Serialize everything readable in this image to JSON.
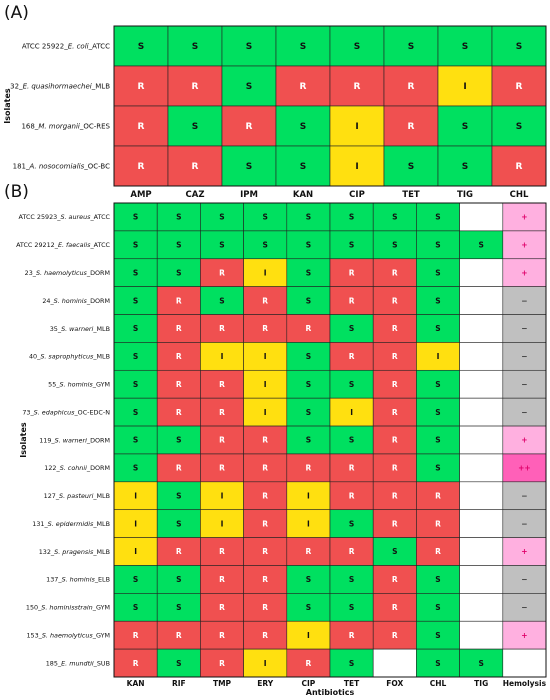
{
  "colors": {
    "S": "#00e060",
    "R": "#f05050",
    "I": "#ffe010",
    "empty": "#ffffff",
    "plus": "#ffb0e0",
    "plusplus": "#ff60b8",
    "minus": "#c0c0c0",
    "hemoText": "#e0006a"
  },
  "chart_data": [
    {
      "type": "heatmap",
      "panel_label": "(A)",
      "ylabel": "Isolates",
      "xlabel": "",
      "categories": [
        "AMP",
        "CAZ",
        "IPM",
        "KAN",
        "CIP",
        "TET",
        "TIG",
        "CHL"
      ],
      "rows": [
        {
          "label": "ATCC 25922_E. coli_ATCC",
          "values": [
            "S",
            "S",
            "S",
            "S",
            "S",
            "S",
            "S",
            "S"
          ]
        },
        {
          "label": "32_E. quasihormaechei_MLB",
          "values": [
            "R",
            "R",
            "S",
            "R",
            "R",
            "R",
            "I",
            "R"
          ]
        },
        {
          "label": "168_M. morganii_OC-RES",
          "values": [
            "R",
            "S",
            "R",
            "S",
            "I",
            "R",
            "S",
            "S"
          ]
        },
        {
          "label": "181_A. nosocomialis_OC-BC",
          "values": [
            "R",
            "R",
            "S",
            "S",
            "I",
            "S",
            "S",
            "R"
          ]
        }
      ]
    },
    {
      "type": "heatmap",
      "panel_label": "(B)",
      "ylabel": "Isolates",
      "xlabel": "Antibiotics",
      "categories": [
        "KAN",
        "RIF",
        "TMP",
        "ERY",
        "CIP",
        "TET",
        "FOX",
        "CHL",
        "TIG",
        "Hemolysis"
      ],
      "rows": [
        {
          "label": "ATCC 25923_S. aureus_ATCC",
          "values": [
            "S",
            "S",
            "S",
            "S",
            "S",
            "S",
            "S",
            "S",
            "",
            "+"
          ]
        },
        {
          "label": "ATCC 29212_E. faecalis_ATCC",
          "values": [
            "S",
            "S",
            "S",
            "S",
            "S",
            "S",
            "S",
            "S",
            "S",
            "+"
          ]
        },
        {
          "label": "23_S. haemolyticus_DORM",
          "values": [
            "S",
            "S",
            "R",
            "I",
            "S",
            "R",
            "R",
            "S",
            "",
            "+"
          ]
        },
        {
          "label": "24_S. hominis_DORM",
          "values": [
            "S",
            "R",
            "S",
            "R",
            "S",
            "R",
            "R",
            "S",
            "",
            "−"
          ]
        },
        {
          "label": "35_S. warneri_MLB",
          "values": [
            "S",
            "R",
            "R",
            "R",
            "R",
            "S",
            "R",
            "S",
            "",
            "−"
          ]
        },
        {
          "label": "40_S. saprophyticus_MLB",
          "values": [
            "S",
            "R",
            "I",
            "I",
            "S",
            "R",
            "R",
            "I",
            "",
            "−"
          ]
        },
        {
          "label": "55_S. hominis_GYM",
          "values": [
            "S",
            "R",
            "R",
            "I",
            "S",
            "S",
            "R",
            "S",
            "",
            "−"
          ]
        },
        {
          "label": "73_S. edaphicus_OC-EDC-N",
          "values": [
            "S",
            "R",
            "R",
            "I",
            "S",
            "I",
            "R",
            "S",
            "",
            "−"
          ]
        },
        {
          "label": "119_S. warneri_DORM",
          "values": [
            "S",
            "S",
            "R",
            "R",
            "S",
            "S",
            "R",
            "S",
            "",
            "+"
          ]
        },
        {
          "label": "122_S. cohnii_DORM",
          "values": [
            "S",
            "R",
            "R",
            "R",
            "R",
            "R",
            "R",
            "S",
            "",
            "++"
          ]
        },
        {
          "label": "127_S. pasteuri_MLB",
          "values": [
            "I",
            "S",
            "I",
            "R",
            "I",
            "R",
            "R",
            "R",
            "",
            "−"
          ]
        },
        {
          "label": "131_S. epidermidis_MLB",
          "values": [
            "I",
            "S",
            "I",
            "R",
            "I",
            "S",
            "R",
            "R",
            "",
            "−"
          ]
        },
        {
          "label": "132_S. pragensis_MLB",
          "values": [
            "I",
            "R",
            "R",
            "R",
            "R",
            "R",
            "S",
            "R",
            "",
            "+"
          ]
        },
        {
          "label": "137_S. hominis_ELB",
          "values": [
            "S",
            "S",
            "R",
            "R",
            "S",
            "S",
            "R",
            "S",
            "",
            "−"
          ]
        },
        {
          "label": "150_S. hominisstrain_GYM",
          "values": [
            "S",
            "S",
            "R",
            "R",
            "S",
            "S",
            "R",
            "S",
            "",
            "−"
          ]
        },
        {
          "label": "153_S. haemolyticus_GYM",
          "values": [
            "R",
            "R",
            "R",
            "R",
            "I",
            "R",
            "R",
            "S",
            "",
            "+"
          ]
        },
        {
          "label": "185_E. mundtii_SUB",
          "values": [
            "R",
            "S",
            "R",
            "I",
            "R",
            "S",
            "",
            "S",
            "S",
            ""
          ]
        }
      ]
    }
  ]
}
